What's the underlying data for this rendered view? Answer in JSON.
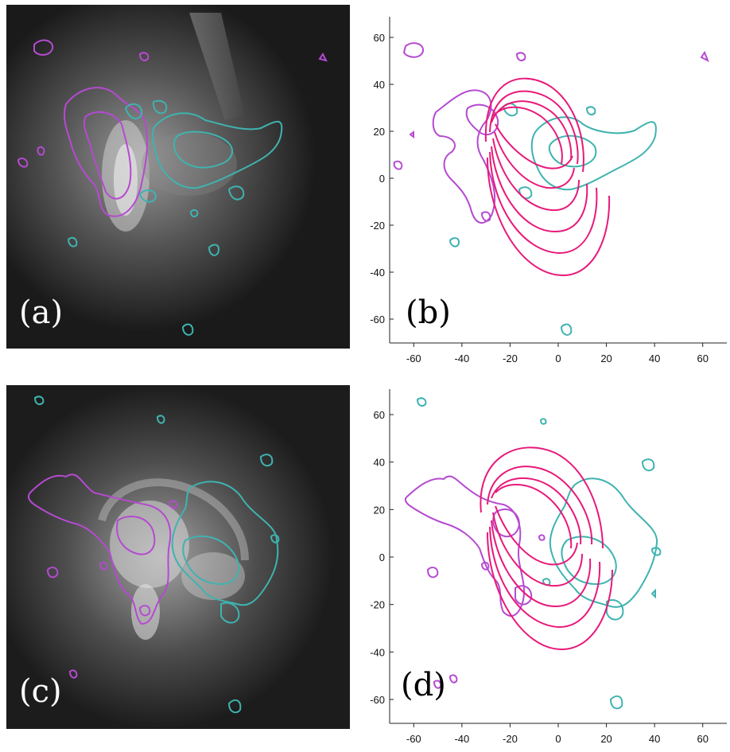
{
  "figure": {
    "panels": [
      {
        "id": "a",
        "label": "(a)",
        "kind": "image",
        "colors": {
          "negative": "#b54ad1",
          "positive": "#3fb3b0"
        }
      },
      {
        "id": "b",
        "label": "(b)",
        "kind": "plot",
        "colors": {
          "negative": "#b54ad1",
          "positive": "#3fb3b0",
          "field_lines": "#e8197a"
        }
      },
      {
        "id": "c",
        "label": "(c)",
        "kind": "image",
        "colors": {
          "negative": "#b54ad1",
          "positive": "#3fb3b0"
        }
      },
      {
        "id": "d",
        "label": "(d)",
        "kind": "plot",
        "colors": {
          "negative": "#b54ad1",
          "positive": "#3fb3b0",
          "field_lines": "#e8197a"
        }
      }
    ],
    "axes": {
      "x_ticks": [
        "-60",
        "-40",
        "-20",
        "0",
        "20",
        "40",
        "60"
      ],
      "y_ticks": [
        "60",
        "40",
        "20",
        "0",
        "-20",
        "-40",
        "-60"
      ],
      "xlim": [
        -70,
        70
      ],
      "ylim": [
        -70,
        70
      ]
    }
  }
}
